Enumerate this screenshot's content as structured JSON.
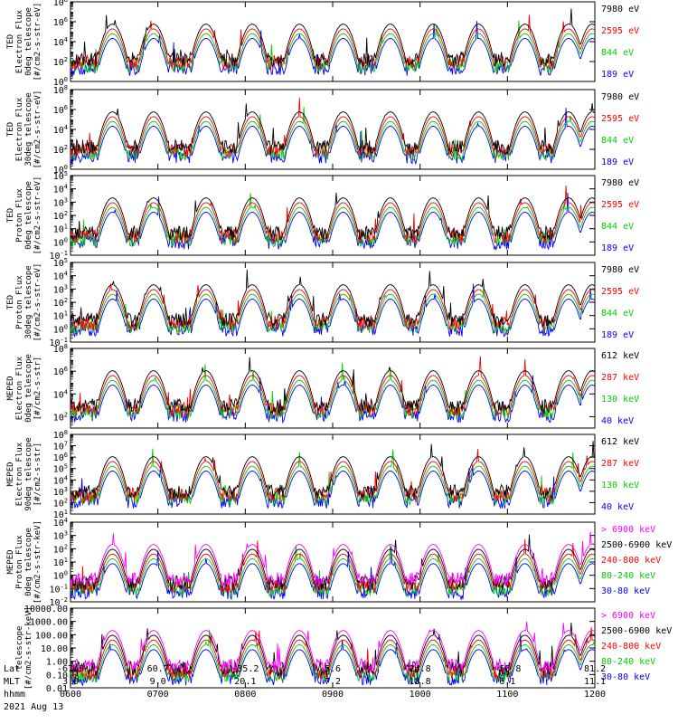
{
  "chart_data": {
    "type": "line",
    "date": "2021 Aug 13",
    "x_axis": {
      "row_labels": [
        "Lat",
        "MLT",
        "hhmm"
      ],
      "ticks": [
        {
          "lat": "-67.9",
          "mlt": "3.0",
          "hhmm": "0600"
        },
        {
          "lat": "60.7",
          "mlt": "9.0",
          "hhmm": "0700"
        },
        {
          "lat": "-35.2",
          "mlt": "20.1",
          "hhmm": "0800"
        },
        {
          "lat": "5.6",
          "mlt": "7.2",
          "hhmm": "0900"
        },
        {
          "lat": "24.8",
          "mlt": "18.8",
          "hhmm": "1000"
        },
        {
          "lat": "-56.8",
          "mlt": "6.1",
          "hhmm": "1100"
        },
        {
          "lat": "81.2",
          "mlt": "11.1",
          "hhmm": "1200"
        }
      ]
    },
    "panels": [
      {
        "ylabel_lines": [
          "TED",
          "Electron Flux",
          "0deg telescope",
          "[#/cm2-s-str-eV]"
        ],
        "yscale": "log",
        "ylim_exp": [
          0,
          8
        ],
        "tick_exps": [
          0,
          2,
          4,
          6,
          8
        ],
        "tick_format": "power",
        "series": [
          {
            "name": "7980 eV",
            "color": "#000000"
          },
          {
            "name": "2595 eV",
            "color": "#ff0000"
          },
          {
            "name": "844 eV",
            "color": "#00cc00"
          },
          {
            "name": "189 eV",
            "color": "#0000ff"
          }
        ]
      },
      {
        "ylabel_lines": [
          "TED",
          "Electron Flux",
          "30deg telescope",
          "[#/cm2-s-str-eV]"
        ],
        "yscale": "log",
        "ylim_exp": [
          0,
          8
        ],
        "tick_exps": [
          0,
          2,
          4,
          6,
          8
        ],
        "tick_format": "power",
        "series": [
          {
            "name": "7980 eV",
            "color": "#000000"
          },
          {
            "name": "2595 eV",
            "color": "#ff0000"
          },
          {
            "name": "844 eV",
            "color": "#00cc00"
          },
          {
            "name": "189 eV",
            "color": "#0000ff"
          }
        ]
      },
      {
        "ylabel_lines": [
          "TED",
          "Proton Flux",
          "0deg telescope",
          "[#/cm2-s-str-eV]"
        ],
        "yscale": "log",
        "ylim_exp": [
          -1,
          5
        ],
        "tick_exps": [
          -1,
          0,
          1,
          2,
          3,
          4,
          5
        ],
        "tick_format": "power",
        "series": [
          {
            "name": "7980 eV",
            "color": "#000000"
          },
          {
            "name": "2595 eV",
            "color": "#ff0000"
          },
          {
            "name": "844 eV",
            "color": "#00cc00"
          },
          {
            "name": "189 eV",
            "color": "#0000ff"
          }
        ]
      },
      {
        "ylabel_lines": [
          "TED",
          "Proton Flux",
          "30deg telescope",
          "[#/cm2-s-str-eV]"
        ],
        "yscale": "log",
        "ylim_exp": [
          -1,
          5
        ],
        "tick_exps": [
          -1,
          0,
          1,
          2,
          3,
          4,
          5
        ],
        "tick_format": "power",
        "series": [
          {
            "name": "7980 eV",
            "color": "#000000"
          },
          {
            "name": "2595 eV",
            "color": "#ff0000"
          },
          {
            "name": "844 eV",
            "color": "#00cc00"
          },
          {
            "name": "189 eV",
            "color": "#0000ff"
          }
        ]
      },
      {
        "ylabel_lines": [
          "MEPED",
          "Electron Flux",
          "0deg telescope",
          "[#/cm2-s-str]"
        ],
        "yscale": "log",
        "ylim_exp": [
          1,
          8
        ],
        "tick_exps": [
          2,
          4,
          6,
          8
        ],
        "tick_format": "power",
        "series": [
          {
            "name": "612 keV",
            "color": "#000000"
          },
          {
            "name": "287 keV",
            "color": "#ff0000"
          },
          {
            "name": "130 keV",
            "color": "#00cc00"
          },
          {
            "name": "40 keV",
            "color": "#0000ff"
          }
        ]
      },
      {
        "ylabel_lines": [
          "MEPED",
          "Electron Flux",
          "90deg telescope",
          "[#/cm2-s-str]"
        ],
        "yscale": "log",
        "ylim_exp": [
          1,
          8
        ],
        "tick_exps": [
          1,
          2,
          3,
          4,
          5,
          6,
          7,
          8
        ],
        "tick_format": "power",
        "series": [
          {
            "name": "612 keV",
            "color": "#000000"
          },
          {
            "name": "287 keV",
            "color": "#ff0000"
          },
          {
            "name": "130 keV",
            "color": "#00cc00"
          },
          {
            "name": "40 keV",
            "color": "#0000ff"
          }
        ]
      },
      {
        "ylabel_lines": [
          "MEPED",
          "Proton Flux",
          "0deg telescope",
          "[#/cm2-s-str-keV]"
        ],
        "yscale": "log",
        "ylim_exp": [
          -2,
          4
        ],
        "tick_exps": [
          -2,
          -1,
          0,
          1,
          2,
          3,
          4
        ],
        "tick_format": "power",
        "series": [
          {
            "name": "> 6900 keV",
            "color": "#ff00ff"
          },
          {
            "name": "2500-6900 keV",
            "color": "#000000"
          },
          {
            "name": "240-800 keV",
            "color": "#ff0000"
          },
          {
            "name": "80-240 keV",
            "color": "#00cc00"
          },
          {
            "name": "30-80 keV",
            "color": "#0000ff"
          }
        ]
      },
      {
        "ylabel_lines": [
          "telescope",
          "[#/cm2-s-str-keV]"
        ],
        "yscale": "log",
        "ylim_exp": [
          -2,
          4
        ],
        "tick_values": [
          "0.01",
          "0.10",
          "1.00",
          "10.00",
          "100.00",
          "1000.00",
          "10000.00"
        ],
        "tick_exps": [
          -2,
          -1,
          0,
          1,
          2,
          3,
          4
        ],
        "tick_format": "decimal",
        "series": [
          {
            "name": "> 6900 keV",
            "color": "#ff00ff"
          },
          {
            "name": "2500-6900 keV",
            "color": "#000000"
          },
          {
            "name": "240-800 keV",
            "color": "#ff0000"
          },
          {
            "name": "80-240 keV",
            "color": "#00cc00"
          },
          {
            "name": "30-80 keV",
            "color": "#0000ff"
          }
        ]
      }
    ]
  }
}
